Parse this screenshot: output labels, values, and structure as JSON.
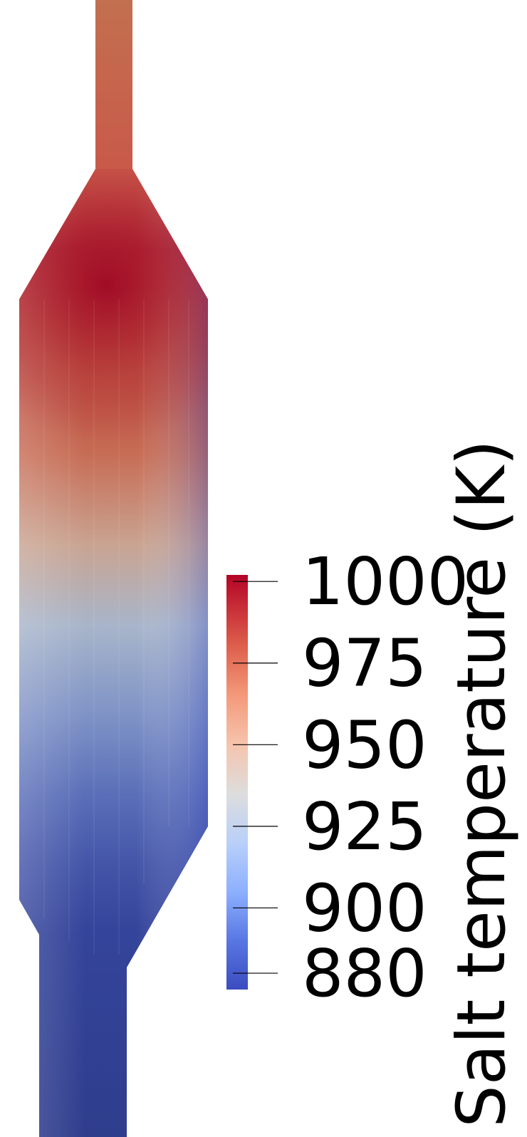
{
  "chart_data": {
    "type": "heatmap",
    "title": "",
    "colorbar": {
      "title": "Salt temperature (K)",
      "range": [
        875,
        1002
      ],
      "ticks": [
        1000,
        975,
        950,
        925,
        900,
        880
      ],
      "tick_labels": [
        "1000",
        "975",
        "950",
        "925",
        "900",
        "880"
      ],
      "colormap": "Cool to Warm",
      "colormap_stops": [
        {
          "value": 875,
          "color": "#3b4cc0"
        },
        {
          "value": 890,
          "color": "#5977e3"
        },
        {
          "value": 905,
          "color": "#8db0fe"
        },
        {
          "value": 920,
          "color": "#b9d0f9"
        },
        {
          "value": 935,
          "color": "#dddddd"
        },
        {
          "value": 950,
          "color": "#f5c4ad"
        },
        {
          "value": 965,
          "color": "#f49a7b"
        },
        {
          "value": 980,
          "color": "#de604d"
        },
        {
          "value": 1002,
          "color": "#b40426"
        }
      ]
    }
  },
  "colors": {
    "hot_core": "#a00a25",
    "inlet_top": "#c06b52",
    "cold_outlet": "#2f3e8e",
    "background": "#ffffff",
    "tick_line": "#000000"
  }
}
